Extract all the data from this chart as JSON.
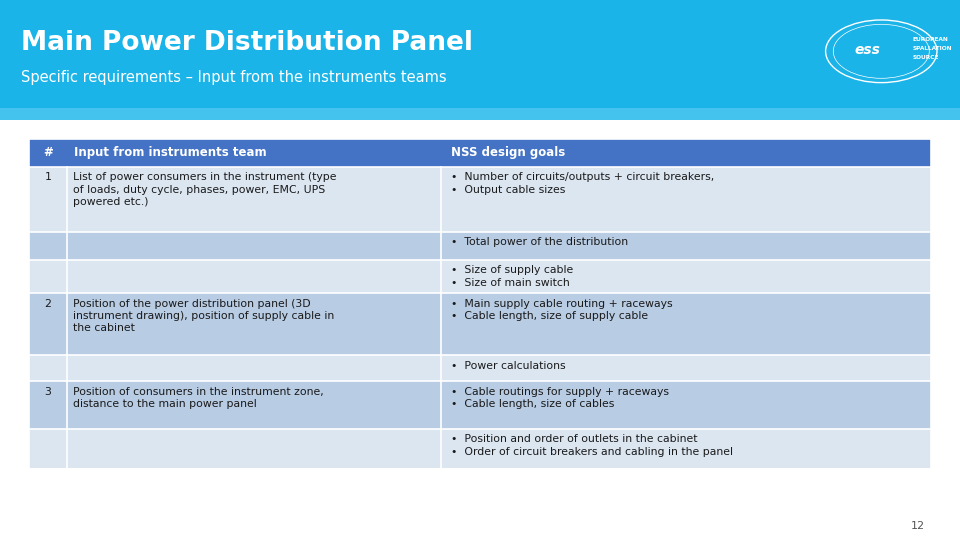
{
  "title": "Main Power Distribution Panel",
  "subtitle": "Specific requirements – Input from the instruments teams",
  "header_bg": "#1ab4e8",
  "header_text_color": "#ffffff",
  "page_bg": "#ffffff",
  "col1_header": "#",
  "col2_header": "Input from instruments team",
  "col3_header": "NSS design goals",
  "col_header_bg": "#4472c4",
  "col_header_text": "#ffffff",
  "row_colors_light": "#dce6f1",
  "row_colors_dark": "#b8cce4",
  "rows_def": [
    [
      "1",
      "List of power consumers in the instrument (type\nof loads, duty cycle, phases, power, EMC, UPS\npowered etc.)",
      "•  Number of circuits/outputs + circuit breakers,\n•  Output cable sizes",
      0,
      0.12
    ],
    [
      "",
      "",
      "•  Total power of the distribution",
      1,
      0.052
    ],
    [
      "",
      "",
      "•  Size of supply cable\n•  Size of main switch",
      0,
      0.062
    ],
    [
      "2",
      "Position of the power distribution panel (3D\ninstrument drawing), position of supply cable in\nthe cabinet",
      "•  Main supply cable routing + raceways\n•  Cable length, size of supply cable",
      1,
      0.115
    ],
    [
      "",
      "",
      "•  Power calculations",
      0,
      0.048
    ],
    [
      "3",
      "Position of consumers in the instrument zone,\ndistance to the main power panel",
      "•  Cable routings for supply + raceways\n•  Cable length, size of cables",
      1,
      0.088
    ],
    [
      "",
      "",
      "•  Position and order of outlets in the cabinet\n•  Order of circuit breakers and cabling in the panel",
      0,
      0.075
    ]
  ],
  "page_number": "12"
}
